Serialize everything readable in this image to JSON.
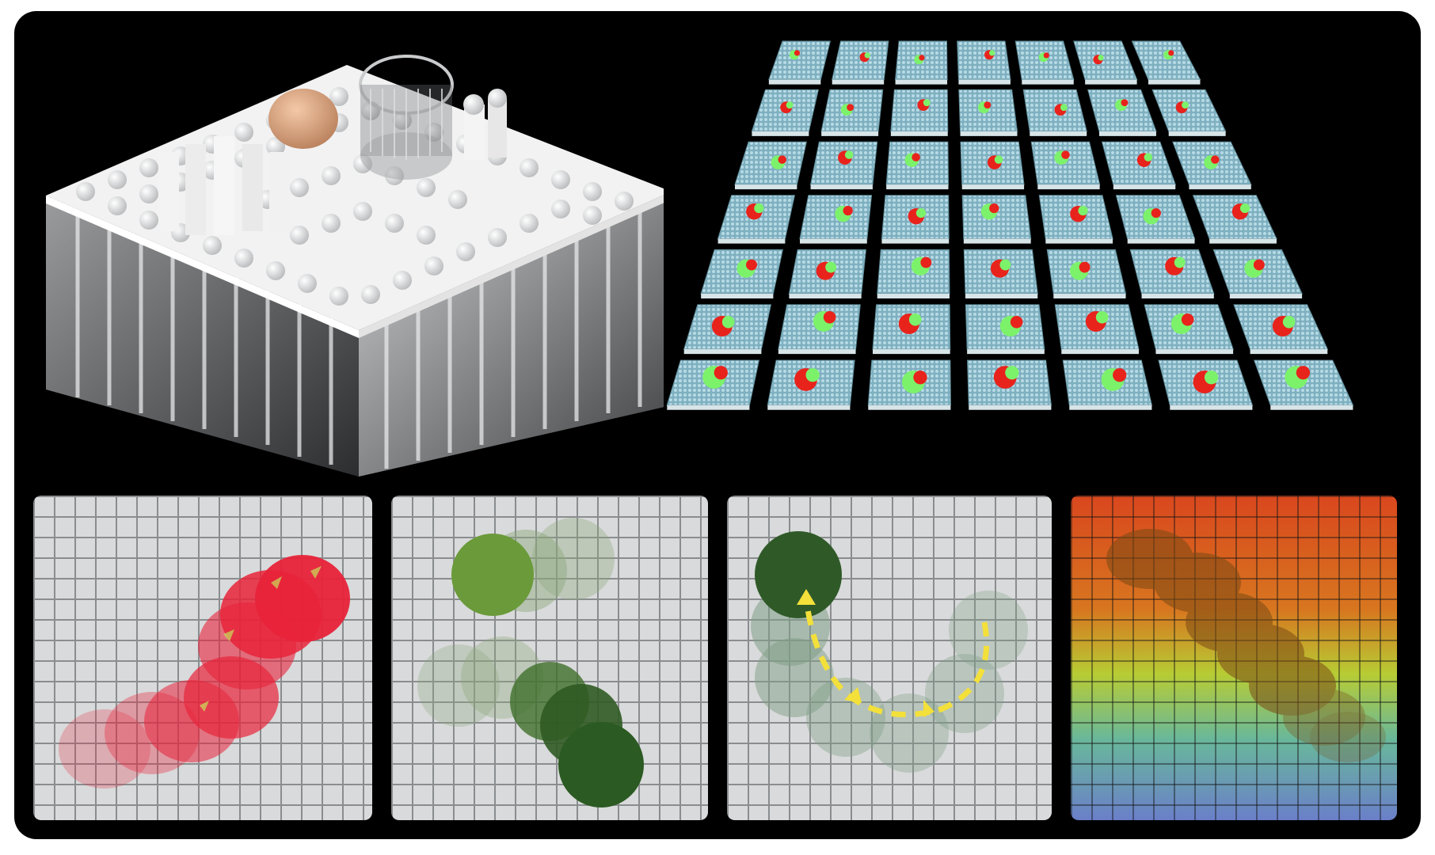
{
  "figure": {
    "device_photo": {
      "kind": "photograph",
      "objects": [
        "egg",
        "glass-cup",
        "pin-array-device"
      ]
    },
    "simulation_grid": {
      "rows": 7,
      "cols": 7,
      "tile_color": "#86b7c6",
      "object_colors": [
        "#e8231c",
        "#7cf26a"
      ]
    },
    "trajectory_panels": [
      {
        "object": "dragon-fruit",
        "accent": "#e01e2a"
      },
      {
        "object": "lime-translate",
        "accent": "#3d7a2c"
      },
      {
        "object": "lime-u-turn",
        "accent": "#f3e03a"
      },
      {
        "object": "glass-object-heatmap",
        "accent": "#e2421c"
      }
    ]
  }
}
